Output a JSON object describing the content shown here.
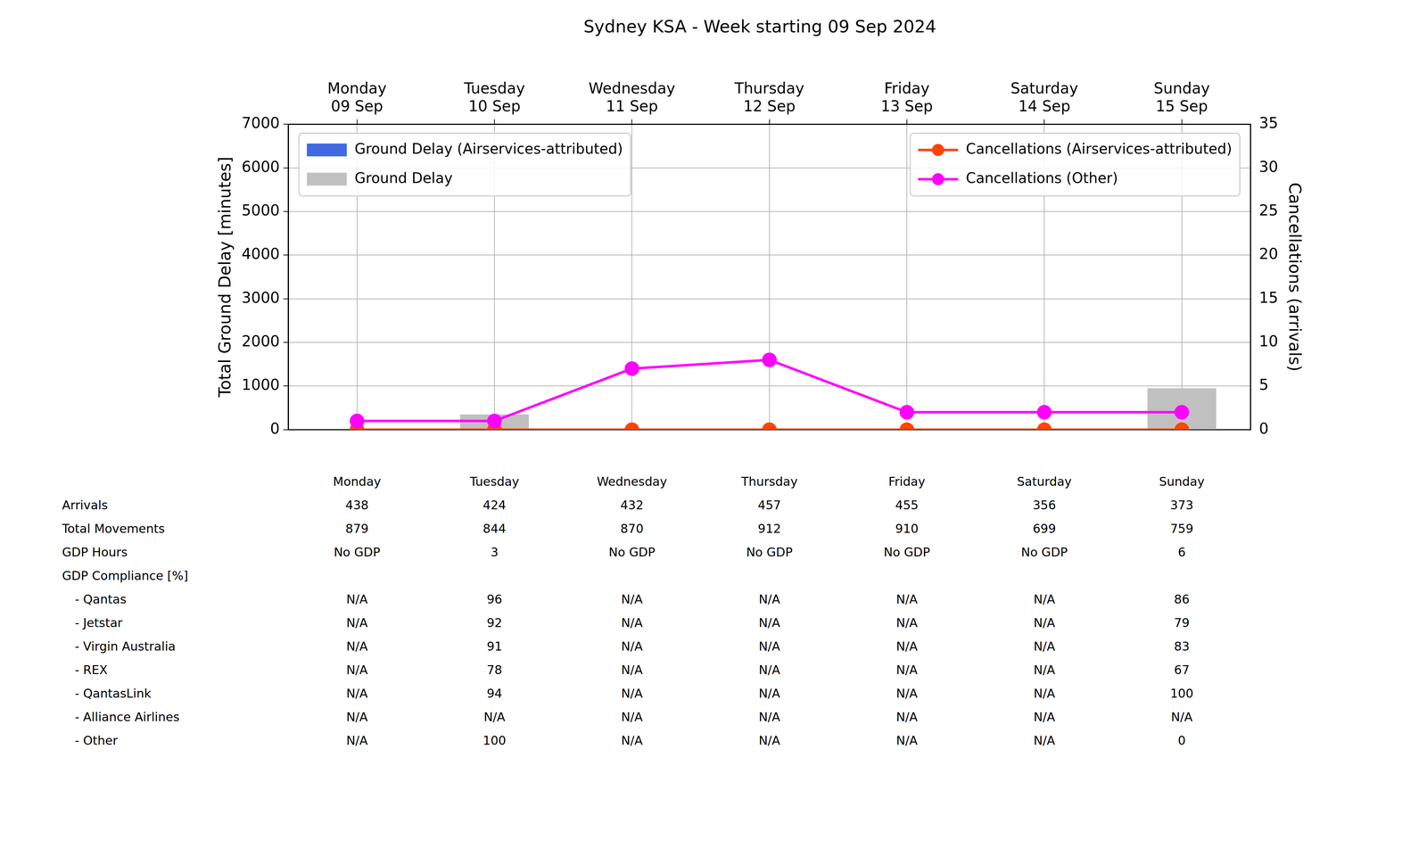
{
  "chart_data": {
    "type": "bar",
    "title": "Sydney KSA - Week starting 09 Sep 2024",
    "categories": [
      "Monday\n09 Sep",
      "Tuesday\n10 Sep",
      "Wednesday\n11 Sep",
      "Thursday\n12 Sep",
      "Friday\n13 Sep",
      "Saturday\n14 Sep",
      "Sunday\n15 Sep"
    ],
    "ylabel": "Total Ground Delay [minutes]",
    "y2label": "Cancellations (arrivals)",
    "ylim": [
      0,
      7000
    ],
    "yticks": [
      0,
      1000,
      2000,
      3000,
      4000,
      5000,
      6000,
      7000
    ],
    "y2lim": [
      0,
      35
    ],
    "y2ticks": [
      0,
      5,
      10,
      15,
      20,
      25,
      30,
      35
    ],
    "grid": true,
    "legend": "top",
    "series": [
      {
        "name": "Ground Delay (Airservices-attributed)",
        "type": "bar",
        "color": "#4169e1",
        "values": [
          0,
          0,
          0,
          0,
          0,
          0,
          0
        ]
      },
      {
        "name": "Ground Delay",
        "type": "bar",
        "color": "#c0c0c0",
        "values": [
          0,
          350,
          0,
          0,
          0,
          0,
          950
        ]
      },
      {
        "name": "Cancellations (Airservices-attributed)",
        "type": "line",
        "axis": "y2",
        "marker": "circle",
        "color": "#ff4500",
        "values": [
          0,
          0,
          0,
          0,
          0,
          0,
          0
        ]
      },
      {
        "name": "Cancellations (Other)",
        "type": "line",
        "axis": "y2",
        "marker": "circle",
        "color": "#ff00ff",
        "values": [
          1,
          1,
          7,
          8,
          2,
          2,
          2
        ]
      }
    ]
  },
  "table": {
    "columns": [
      "Monday",
      "Tuesday",
      "Wednesday",
      "Thursday",
      "Friday",
      "Saturday",
      "Sunday"
    ],
    "rows": [
      {
        "label": "Arrivals",
        "values": [
          438,
          424,
          432,
          457,
          455,
          356,
          373
        ]
      },
      {
        "label": "Total Movements",
        "values": [
          879,
          844,
          870,
          912,
          910,
          699,
          759
        ]
      },
      {
        "label": "GDP Hours",
        "values": [
          "No GDP",
          3,
          "No GDP",
          "No GDP",
          "No GDP",
          "No GDP",
          6
        ]
      },
      {
        "label": "GDP Compliance [%]",
        "rows": [
          {
            "label": "- Qantas",
            "values": [
              "N/A",
              96,
              "N/A",
              "N/A",
              "N/A",
              "N/A",
              86
            ]
          },
          {
            "label": "- Jetstar",
            "values": [
              "N/A",
              92,
              "N/A",
              "N/A",
              "N/A",
              "N/A",
              79
            ]
          },
          {
            "label": "- Virgin Australia",
            "values": [
              "N/A",
              91,
              "N/A",
              "N/A",
              "N/A",
              "N/A",
              83
            ]
          },
          {
            "label": "- REX",
            "values": [
              "N/A",
              78,
              "N/A",
              "N/A",
              "N/A",
              "N/A",
              67
            ]
          },
          {
            "label": "- QantasLink",
            "values": [
              "N/A",
              94,
              "N/A",
              "N/A",
              "N/A",
              "N/A",
              100
            ]
          },
          {
            "label": "- Alliance Airlines",
            "values": [
              "N/A",
              "N/A",
              "N/A",
              "N/A",
              "N/A",
              "N/A",
              "N/A"
            ]
          },
          {
            "label": "- Other",
            "values": [
              "N/A",
              100,
              "N/A",
              "N/A",
              "N/A",
              "N/A",
              0
            ]
          }
        ]
      }
    ]
  }
}
